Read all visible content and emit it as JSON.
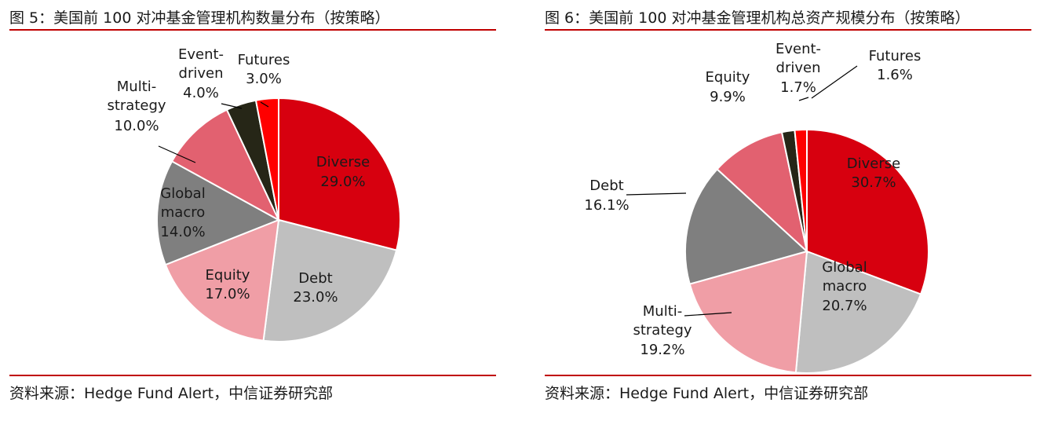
{
  "figures": [
    {
      "title": "图 5：美国前 100 对冲基金管理机构数量分布（按策略）",
      "source": "资料来源：Hedge Fund Alert，中信证券研究部"
    },
    {
      "title": "图 6：美国前 100 对冲基金管理机构总资产规模分布（按策略）",
      "source": "资料来源：Hedge Fund Alert，中信证券研究部"
    }
  ],
  "chart_data": [
    {
      "type": "pie",
      "title": "图 5：美国前 100 对冲基金管理机构数量分布（按策略）",
      "slices": [
        {
          "label": "Diverse",
          "value": 29.0,
          "value_label": "29.0%",
          "color": "#d7000f"
        },
        {
          "label": "Debt",
          "value": 23.0,
          "value_label": "23.0%",
          "color": "#bfbfbf"
        },
        {
          "label": "Equity",
          "value": 17.0,
          "value_label": "17.0%",
          "color": "#f09ea6"
        },
        {
          "label": "Global macro",
          "value": 14.0,
          "value_label": "14.0%",
          "color": "#7f7f7f"
        },
        {
          "label": "Multi-strategy",
          "value": 10.0,
          "value_label": "10.0%",
          "color": "#e26170"
        },
        {
          "label": "Event-driven",
          "value": 4.0,
          "value_label": "4.0%",
          "color": "#262617"
        },
        {
          "label": "Futures",
          "value": 3.0,
          "value_label": "3.0%",
          "color": "#ff0000"
        }
      ]
    },
    {
      "type": "pie",
      "title": "图 6：美国前 100 对冲基金管理机构总资产规模分布（按策略）",
      "slices": [
        {
          "label": "Diverse",
          "value": 30.7,
          "value_label": "30.7%",
          "color": "#d7000f"
        },
        {
          "label": "Global macro",
          "value": 20.7,
          "value_label": "20.7%",
          "color": "#bfbfbf"
        },
        {
          "label": "Multi-strategy",
          "value": 19.2,
          "value_label": "19.2%",
          "color": "#f09ea6"
        },
        {
          "label": "Debt",
          "value": 16.1,
          "value_label": "16.1%",
          "color": "#7f7f7f"
        },
        {
          "label": "Equity",
          "value": 9.9,
          "value_label": "9.9%",
          "color": "#e26170"
        },
        {
          "label": "Event-driven",
          "value": 1.7,
          "value_label": "1.7%",
          "color": "#262617"
        },
        {
          "label": "Futures",
          "value": 1.6,
          "value_label": "1.6%",
          "color": "#ff0000"
        }
      ]
    }
  ]
}
